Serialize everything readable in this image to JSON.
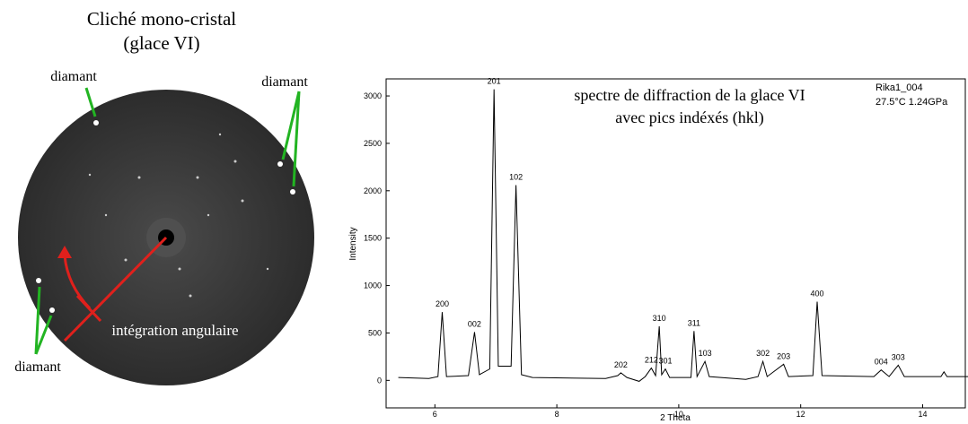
{
  "left_panel": {
    "title": [
      "Cliché mono-cristal",
      "(glace VI)"
    ],
    "diamond_labels": [
      "diamant",
      "diamant",
      "diamant"
    ],
    "integration_label": "intégration angulaire"
  },
  "chart_data": {
    "type": "line",
    "title": [
      "spectre de diffraction de la glace VI",
      "avec pics indéxés (hkl)"
    ],
    "sample": [
      "Rika1_004",
      "27.5°C 1.24GPa"
    ],
    "xlabel": "2 Theta",
    "ylabel": "Intensity",
    "x": [
      5.4,
      5.9,
      6.05,
      6.12,
      6.19,
      6.55,
      6.65,
      6.73,
      6.9,
      6.97,
      7.04,
      7.25,
      7.33,
      7.42,
      7.6,
      8.8,
      9.0,
      9.05,
      9.15,
      9.35,
      9.45,
      9.55,
      9.62,
      9.68,
      9.72,
      9.78,
      9.85,
      10.2,
      10.25,
      10.3,
      10.43,
      10.5,
      11.1,
      11.3,
      11.38,
      11.45,
      11.72,
      11.8,
      12.2,
      12.27,
      12.35,
      13.2,
      13.32,
      13.45,
      13.6,
      13.7,
      14.3,
      14.35,
      14.4,
      14.85
    ],
    "series": [
      {
        "name": "Rika1_004",
        "color": "#000000",
        "values": [
          30,
          20,
          40,
          720,
          40,
          50,
          510,
          60,
          120,
          3070,
          150,
          150,
          2060,
          60,
          30,
          20,
          50,
          80,
          30,
          -10,
          40,
          130,
          50,
          570,
          60,
          120,
          30,
          30,
          520,
          40,
          200,
          40,
          10,
          40,
          200,
          40,
          170,
          40,
          50,
          830,
          50,
          40,
          110,
          40,
          160,
          40,
          40,
          90,
          40,
          40
        ],
        "peak_labels": [
          null,
          null,
          null,
          "200",
          null,
          null,
          "002",
          null,
          null,
          "201",
          null,
          null,
          "102",
          null,
          null,
          null,
          null,
          "202",
          null,
          null,
          null,
          "212",
          null,
          "310",
          null,
          "301",
          null,
          null,
          "311",
          null,
          "103",
          null,
          null,
          null,
          "302",
          null,
          "203",
          null,
          null,
          "400",
          null,
          null,
          "004",
          null,
          "303",
          null,
          null,
          null,
          null,
          null
        ]
      }
    ],
    "xlim": [
      5.2,
      14.7
    ],
    "ylim": [
      -290,
      3180
    ],
    "xticks": [
      6,
      8,
      10,
      12,
      14
    ],
    "yticks": [
      0,
      500,
      1000,
      1500,
      2000,
      2500,
      3000
    ]
  }
}
